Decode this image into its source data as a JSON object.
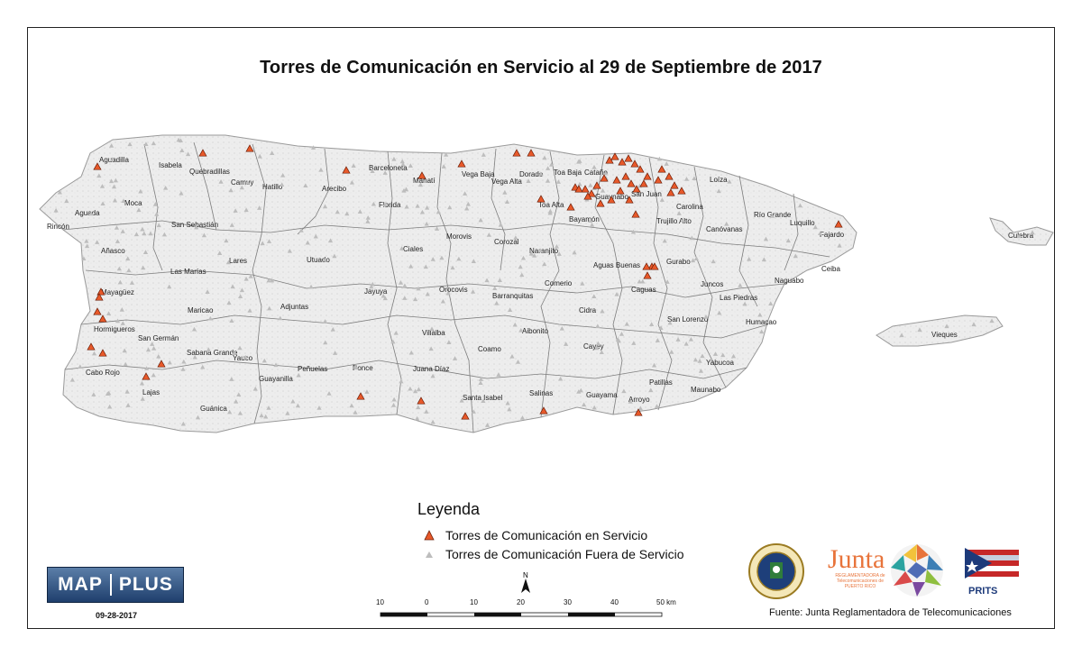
{
  "title": "Torres de Comunicación en Servicio al 29 de Septiembre de 2017",
  "municipalities": [
    "Aguadilla",
    "Isabela",
    "Quebradillas",
    "Camuy",
    "Hatillo",
    "Arecibo",
    "Barceloneta",
    "Florida",
    "Manatí",
    "Vega Baja",
    "Vega Alta",
    "Dorado",
    "Toa Baja",
    "Toa Alta",
    "Cataño",
    "Guaynabo",
    "San Juan",
    "Bayamón",
    "Carolina",
    "Trujillo Alto",
    "Loíza",
    "Canóvanas",
    "Río Grande",
    "Luquillo",
    "Fajardo",
    "Ceiba",
    "Naguabo",
    "Culebra",
    "Vieques",
    "Aguada",
    "Rincón",
    "Moca",
    "San Sebastián",
    "Añasco",
    "Lares",
    "Utuado",
    "Ciales",
    "Morovis",
    "Corozal",
    "Naranjito",
    "Mayagüez",
    "Las Marías",
    "Maricao",
    "Hormigueros",
    "San Germán",
    "Sabana Grande",
    "Cabo Rojo",
    "Lajas",
    "Guánica",
    "Yauco",
    "Adjuntas",
    "Jayuya",
    "Orocovis",
    "Barranquitas",
    "Comerio",
    "Aguas Buenas",
    "Caguas",
    "Gurabo",
    "Juncos",
    "Las Piedras",
    "Humacao",
    "Guayanilla",
    "Peñuelas",
    "Ponce",
    "Juana Díaz",
    "Villalba",
    "Coamo",
    "Aibonito",
    "Cidra",
    "Cayey",
    "San Lorenzo",
    "Yabucoa",
    "Santa Isabel",
    "Salinas",
    "Guayama",
    "Arroyo",
    "Patillas",
    "Maunabo"
  ],
  "legend": {
    "title": "Leyenda",
    "in_service": "Torres de Comunicación en Servicio",
    "out_of_service": "Torres de Comunicación Fuera de Servicio",
    "in_service_color": "#e8592a",
    "out_of_service_color": "#bdbdbd"
  },
  "scale": {
    "ticks": [
      "10",
      "0",
      "10",
      "20",
      "30",
      "40",
      "50 km"
    ]
  },
  "north_label": "N",
  "logo": {
    "mapplus_left": "MAP",
    "mapplus_right": "PLUS",
    "date": "09-28-2017",
    "junta_word": "Junta",
    "junta_sub": "REGLAMENTADORA de Telecomunicaciones de PUERTO RICO",
    "prits": "PRITS",
    "seal_text": "GOBIERNO DE PUERTO RICO"
  },
  "source": "Fuente: Junta Reglamentadora de Telecomunicaciones"
}
